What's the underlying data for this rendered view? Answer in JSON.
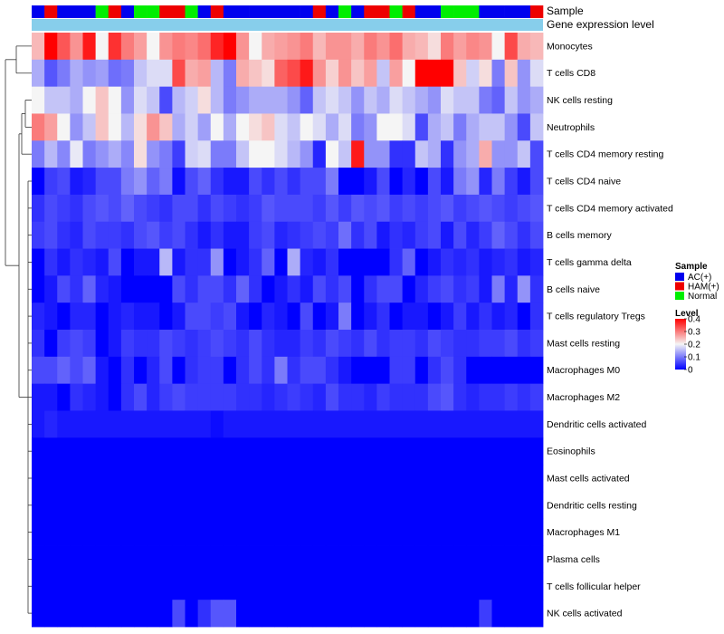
{
  "chart_data": {
    "type": "heatmap",
    "annotation_labels": {
      "sample": "Sample",
      "gene_expression": "Gene expression level"
    },
    "column_samples": [
      "AC(+)",
      "HAM(+)",
      "AC(+)",
      "AC(+)",
      "AC(+)",
      "Normal",
      "HAM(+)",
      "AC(+)",
      "Normal",
      "Normal",
      "HAM(+)",
      "HAM(+)",
      "Normal",
      "AC(+)",
      "HAM(+)",
      "AC(+)",
      "AC(+)",
      "AC(+)",
      "AC(+)",
      "AC(+)",
      "AC(+)",
      "AC(+)",
      "HAM(+)",
      "AC(+)",
      "Normal",
      "AC(+)",
      "HAM(+)",
      "HAM(+)",
      "Normal",
      "HAM(+)",
      "AC(+)",
      "AC(+)",
      "Normal",
      "Normal",
      "Normal",
      "AC(+)",
      "AC(+)",
      "AC(+)",
      "AC(+)",
      "HAM(+)"
    ],
    "rows": [
      {
        "label": "Monocytes",
        "values": [
          0.25,
          0.4,
          0.33,
          0.28,
          0.38,
          0.2,
          0.36,
          0.3,
          0.27,
          0.2,
          0.28,
          0.3,
          0.29,
          0.31,
          0.37,
          0.4,
          0.28,
          0.2,
          0.26,
          0.27,
          0.28,
          0.3,
          0.25,
          0.28,
          0.28,
          0.26,
          0.3,
          0.28,
          0.31,
          0.26,
          0.25,
          0.22,
          0.3,
          0.27,
          0.29,
          0.28,
          0.2,
          0.34,
          0.26,
          0.25
        ]
      },
      {
        "label": "T cells CD8",
        "values": [
          0.14,
          0.07,
          0.1,
          0.14,
          0.12,
          0.13,
          0.09,
          0.1,
          0.16,
          0.18,
          0.18,
          0.34,
          0.26,
          0.27,
          0.15,
          0.1,
          0.26,
          0.24,
          0.22,
          0.32,
          0.34,
          0.38,
          0.28,
          0.23,
          0.28,
          0.24,
          0.27,
          0.16,
          0.27,
          0.2,
          0.4,
          0.4,
          0.4,
          0.24,
          0.17,
          0.22,
          0.1,
          0.24,
          0.12,
          0.18
        ]
      },
      {
        "label": "NK cells resting",
        "values": [
          0.2,
          0.16,
          0.16,
          0.14,
          0.2,
          0.24,
          0.2,
          0.12,
          0.18,
          0.16,
          0.06,
          0.15,
          0.17,
          0.22,
          0.15,
          0.1,
          0.12,
          0.14,
          0.14,
          0.14,
          0.12,
          0.08,
          0.16,
          0.18,
          0.16,
          0.12,
          0.16,
          0.14,
          0.18,
          0.16,
          0.14,
          0.12,
          0.18,
          0.16,
          0.16,
          0.1,
          0.08,
          0.16,
          0.12,
          0.14
        ]
      },
      {
        "label": "Neutrophils",
        "values": [
          0.3,
          0.27,
          0.2,
          0.12,
          0.16,
          0.24,
          0.2,
          0.15,
          0.22,
          0.28,
          0.24,
          0.14,
          0.17,
          0.13,
          0.2,
          0.14,
          0.2,
          0.22,
          0.24,
          0.18,
          0.16,
          0.2,
          0.18,
          0.14,
          0.18,
          0.1,
          0.12,
          0.2,
          0.2,
          0.18,
          0.06,
          0.14,
          0.16,
          0.1,
          0.14,
          0.16,
          0.16,
          0.12,
          0.06,
          0.16
        ]
      },
      {
        "label": "T cells CD4 memory resting",
        "values": [
          0.1,
          0.15,
          0.11,
          0.19,
          0.1,
          0.12,
          0.14,
          0.11,
          0.22,
          0.12,
          0.1,
          0.05,
          0.17,
          0.18,
          0.1,
          0.1,
          0.16,
          0.2,
          0.2,
          0.18,
          0.15,
          0.12,
          0.03,
          0.2,
          0.16,
          0.38,
          0.12,
          0.12,
          0.04,
          0.04,
          0.16,
          0.14,
          0.04,
          0.12,
          0.14,
          0.26,
          0.12,
          0.12,
          0.16,
          0.06
        ]
      },
      {
        "label": "T cells CD4 naive",
        "values": [
          0.0,
          0.05,
          0.06,
          0.02,
          0.03,
          0.06,
          0.06,
          0.1,
          0.12,
          0.08,
          0.1,
          0.01,
          0.06,
          0.08,
          0.04,
          0.02,
          0.02,
          0.06,
          0.04,
          0.06,
          0.04,
          0.06,
          0.06,
          0.1,
          0.0,
          0.0,
          0.02,
          0.06,
          0.0,
          0.03,
          0.0,
          0.06,
          0.02,
          0.1,
          0.12,
          0.03,
          0.1,
          0.05,
          0.02,
          0.06
        ]
      },
      {
        "label": "T cells CD4 memory activated",
        "values": [
          0.04,
          0.06,
          0.05,
          0.04,
          0.06,
          0.07,
          0.06,
          0.08,
          0.06,
          0.05,
          0.04,
          0.06,
          0.06,
          0.04,
          0.06,
          0.05,
          0.04,
          0.05,
          0.07,
          0.06,
          0.06,
          0.06,
          0.05,
          0.07,
          0.05,
          0.07,
          0.06,
          0.07,
          0.05,
          0.06,
          0.05,
          0.06,
          0.07,
          0.05,
          0.06,
          0.07,
          0.06,
          0.05,
          0.06,
          0.07
        ]
      },
      {
        "label": "B cells memory",
        "values": [
          0.05,
          0.06,
          0.04,
          0.03,
          0.06,
          0.05,
          0.05,
          0.04,
          0.06,
          0.07,
          0.05,
          0.06,
          0.04,
          0.02,
          0.04,
          0.02,
          0.02,
          0.05,
          0.06,
          0.03,
          0.04,
          0.05,
          0.06,
          0.05,
          0.09,
          0.04,
          0.06,
          0.02,
          0.04,
          0.03,
          0.05,
          0.06,
          0.02,
          0.06,
          0.03,
          0.05,
          0.08,
          0.06,
          0.04,
          0.06
        ]
      },
      {
        "label": "T cells gamma delta",
        "values": [
          0.0,
          0.04,
          0.02,
          0.04,
          0.03,
          0.02,
          0.06,
          0.0,
          0.02,
          0.02,
          0.15,
          0.02,
          0.04,
          0.04,
          0.12,
          0.0,
          0.02,
          0.04,
          0.08,
          0.0,
          0.14,
          0.03,
          0.02,
          0.04,
          0.0,
          0.0,
          0.0,
          0.0,
          0.04,
          0.08,
          0.0,
          0.02,
          0.04,
          0.03,
          0.04,
          0.02,
          0.03,
          0.04,
          0.02,
          0.03
        ]
      },
      {
        "label": "B cells naive",
        "values": [
          0.0,
          0.02,
          0.06,
          0.04,
          0.08,
          0.03,
          0.02,
          0.0,
          0.0,
          0.0,
          0.0,
          0.06,
          0.04,
          0.06,
          0.06,
          0.04,
          0.08,
          0.04,
          0.0,
          0.02,
          0.04,
          0.02,
          0.06,
          0.04,
          0.06,
          0.0,
          0.04,
          0.06,
          0.06,
          0.0,
          0.03,
          0.05,
          0.06,
          0.04,
          0.05,
          0.02,
          0.1,
          0.03,
          0.12,
          0.04
        ]
      },
      {
        "label": "T cells regulatory  Tregs",
        "values": [
          0.03,
          0.02,
          0.0,
          0.03,
          0.03,
          0.0,
          0.02,
          0.03,
          0.02,
          0.02,
          0.0,
          0.02,
          0.06,
          0.06,
          0.05,
          0.06,
          0.02,
          0.0,
          0.03,
          0.02,
          0.0,
          0.06,
          0.0,
          0.02,
          0.1,
          0.0,
          0.02,
          0.04,
          0.0,
          0.02,
          0.02,
          0.0,
          0.02,
          0.05,
          0.02,
          0.04,
          0.02,
          0.03,
          0.0,
          0.04
        ]
      },
      {
        "label": "Mast cells resting",
        "values": [
          0.04,
          0.0,
          0.05,
          0.06,
          0.05,
          0.0,
          0.02,
          0.05,
          0.04,
          0.04,
          0.06,
          0.05,
          0.04,
          0.05,
          0.06,
          0.05,
          0.04,
          0.06,
          0.04,
          0.03,
          0.03,
          0.05,
          0.04,
          0.06,
          0.05,
          0.04,
          0.06,
          0.04,
          0.05,
          0.05,
          0.04,
          0.06,
          0.05,
          0.04,
          0.04,
          0.05,
          0.05,
          0.06,
          0.04,
          0.05
        ]
      },
      {
        "label": "Macrophages M0",
        "values": [
          0.06,
          0.06,
          0.08,
          0.06,
          0.08,
          0.02,
          0.0,
          0.04,
          0.0,
          0.03,
          0.06,
          0.0,
          0.04,
          0.05,
          0.05,
          0.0,
          0.04,
          0.06,
          0.04,
          0.1,
          0.04,
          0.06,
          0.06,
          0.04,
          0.02,
          0.0,
          0.0,
          0.0,
          0.05,
          0.05,
          0.0,
          0.04,
          0.06,
          0.04,
          0.0,
          0.0,
          0.0,
          0.0,
          0.0,
          0.0
        ]
      },
      {
        "label": "Macrophages M2",
        "values": [
          0.02,
          0.02,
          0.0,
          0.04,
          0.03,
          0.02,
          0.0,
          0.04,
          0.06,
          0.03,
          0.05,
          0.06,
          0.05,
          0.05,
          0.05,
          0.05,
          0.04,
          0.04,
          0.03,
          0.04,
          0.05,
          0.04,
          0.03,
          0.06,
          0.04,
          0.04,
          0.03,
          0.05,
          0.04,
          0.04,
          0.04,
          0.06,
          0.07,
          0.04,
          0.03,
          0.04,
          0.04,
          0.05,
          0.04,
          0.05
        ]
      },
      {
        "label": "Dendritic cells activated",
        "values": [
          0.02,
          0.03,
          0.02,
          0.02,
          0.02,
          0.02,
          0.02,
          0.02,
          0.02,
          0.02,
          0.02,
          0.02,
          0.02,
          0.02,
          0.01,
          0.02,
          0.02,
          0.02,
          0.02,
          0.02,
          0.02,
          0.02,
          0.02,
          0.02,
          0.02,
          0.02,
          0.02,
          0.02,
          0.02,
          0.02,
          0.02,
          0.02,
          0.02,
          0.02,
          0.02,
          0.02,
          0.02,
          0.02,
          0.02,
          0.02
        ]
      },
      {
        "label": "Eosinophils",
        "values": [
          0,
          0,
          0,
          0,
          0,
          0,
          0,
          0,
          0,
          0,
          0,
          0,
          0,
          0,
          0,
          0,
          0,
          0,
          0,
          0,
          0,
          0,
          0,
          0,
          0,
          0,
          0,
          0,
          0,
          0,
          0,
          0,
          0,
          0,
          0,
          0,
          0,
          0,
          0,
          0
        ]
      },
      {
        "label": "Mast cells activated",
        "values": [
          0,
          0,
          0,
          0,
          0,
          0,
          0,
          0,
          0,
          0,
          0,
          0,
          0,
          0,
          0,
          0,
          0,
          0,
          0,
          0,
          0,
          0,
          0,
          0,
          0,
          0,
          0,
          0,
          0,
          0,
          0,
          0,
          0,
          0,
          0,
          0,
          0,
          0,
          0,
          0
        ]
      },
      {
        "label": "Dendritic cells resting",
        "values": [
          0,
          0,
          0,
          0,
          0,
          0,
          0,
          0,
          0,
          0,
          0,
          0,
          0,
          0,
          0,
          0,
          0,
          0,
          0,
          0,
          0,
          0,
          0,
          0,
          0,
          0,
          0,
          0,
          0,
          0,
          0,
          0,
          0,
          0,
          0,
          0,
          0,
          0,
          0,
          0
        ]
      },
      {
        "label": "Macrophages M1",
        "values": [
          0,
          0,
          0,
          0,
          0,
          0,
          0,
          0,
          0,
          0,
          0,
          0,
          0,
          0,
          0,
          0,
          0,
          0,
          0,
          0,
          0,
          0,
          0,
          0,
          0,
          0,
          0,
          0,
          0,
          0,
          0,
          0,
          0,
          0,
          0,
          0,
          0,
          0,
          0,
          0
        ]
      },
      {
        "label": "Plasma cells",
        "values": [
          0,
          0,
          0,
          0,
          0,
          0,
          0,
          0,
          0,
          0,
          0,
          0,
          0,
          0,
          0,
          0,
          0,
          0,
          0,
          0,
          0,
          0,
          0,
          0,
          0,
          0,
          0,
          0,
          0,
          0,
          0,
          0,
          0,
          0,
          0,
          0,
          0,
          0,
          0,
          0
        ]
      },
      {
        "label": "T cells follicular helper",
        "values": [
          0,
          0,
          0,
          0,
          0,
          0,
          0,
          0,
          0,
          0,
          0,
          0,
          0,
          0,
          0,
          0,
          0,
          0,
          0,
          0,
          0,
          0,
          0,
          0,
          0,
          0,
          0,
          0,
          0,
          0,
          0,
          0,
          0,
          0,
          0,
          0,
          0,
          0,
          0,
          0
        ]
      },
      {
        "label": "NK cells activated",
        "values": [
          0,
          0,
          0,
          0,
          0,
          0,
          0,
          0,
          0,
          0,
          0,
          0.06,
          0,
          0.04,
          0.07,
          0.07,
          0,
          0,
          0,
          0,
          0,
          0,
          0,
          0,
          0,
          0,
          0,
          0,
          0,
          0,
          0,
          0,
          0,
          0,
          0,
          0.05,
          0,
          0,
          0,
          0
        ]
      }
    ],
    "legend": {
      "sample_title": "Sample",
      "samples": [
        {
          "label": "AC(+)",
          "color": "#0000ee"
        },
        {
          "label": "HAM(+)",
          "color": "#ee0000"
        },
        {
          "label": "Normal",
          "color": "#00ee00"
        }
      ],
      "level_title": "Level",
      "level_ticks": [
        0.4,
        0.3,
        0.2,
        0.1,
        0
      ],
      "range": [
        0,
        0.4
      ]
    },
    "colors": {
      "low": "#0000ff",
      "mid": "#f5f5f5",
      "high": "#ff0000",
      "annotation_bar": "#87ceeb"
    }
  }
}
